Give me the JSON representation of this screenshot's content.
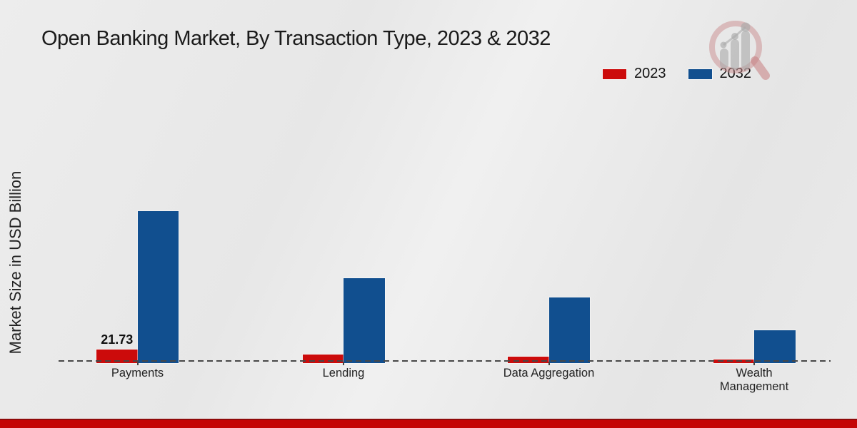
{
  "title": "Open Banking Market, By Transaction Type, 2023 & 2032",
  "y_axis_label": "Market Size in USD Billion",
  "legend": {
    "items": [
      {
        "label": "2023",
        "color": "#cc0b0b"
      },
      {
        "label": "2032",
        "color": "#114f8f"
      }
    ]
  },
  "watermark": {
    "name": "market-research-future-logo"
  },
  "footer": {
    "bar_color": "#c40606"
  },
  "colors": {
    "series_2023": "#cc0b0b",
    "series_2032": "#114f8f",
    "baseline": "#474747",
    "background": "#e9e9e9",
    "title_text": "#1a1a1a"
  },
  "chart_data": {
    "type": "bar",
    "title": "Open Banking Market, By Transaction Type, 2023 & 2032",
    "ylabel": "Market Size in USD Billion",
    "xlabel": "",
    "categories": [
      "Payments",
      "Lending",
      "Data Aggregation",
      "Wealth Management"
    ],
    "series": [
      {
        "name": "2023",
        "color": "#cc0b0b",
        "values": [
          21.73,
          12.7,
          8.9,
          3.6
        ]
      },
      {
        "name": "2032",
        "color": "#114f8f",
        "values": [
          268.5,
          148.8,
          114.5,
          55.9
        ]
      }
    ],
    "value_labels_shown": [
      {
        "category": "Payments",
        "series": "2023",
        "text": "21.73"
      }
    ],
    "ylim": [
      0,
      280
    ],
    "grid": false,
    "y_axis_ticks_visible": false,
    "legend_position": "top-right",
    "baseline_style": "dashed"
  }
}
